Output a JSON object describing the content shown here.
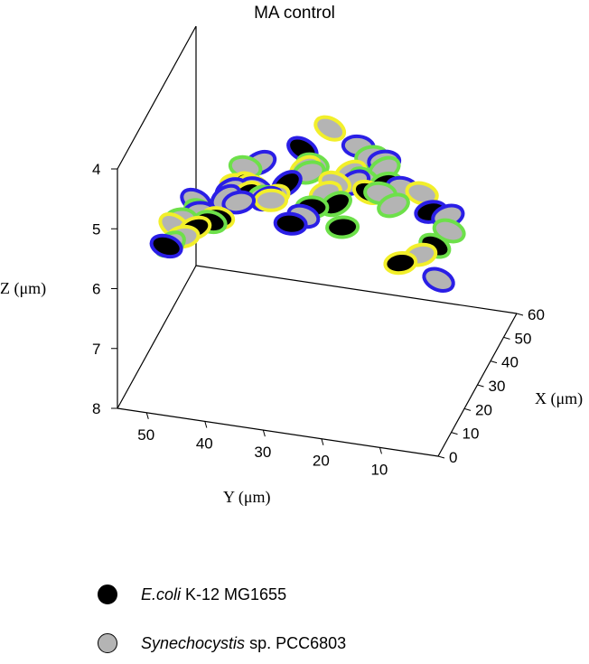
{
  "chart_data": {
    "type": "scatter",
    "title": "MA control",
    "xlabel": "X (μm)",
    "ylabel": "Y (μm)",
    "zlabel": "Z (μm)",
    "xlim": [
      0,
      60
    ],
    "ylim": [
      0,
      55
    ],
    "zlim": [
      4,
      8
    ],
    "x_ticks": [
      "0",
      "10",
      "20",
      "30",
      "40",
      "50",
      "60"
    ],
    "y_ticks": [
      "50",
      "40",
      "30",
      "20",
      "10"
    ],
    "z_ticks": [
      "4",
      "5",
      "6",
      "7",
      "8"
    ],
    "cell_fill_colors": {
      "E.coli": "#000000",
      "Synechocystis": "#b4b4b4"
    },
    "ring_colors": {
      "blue": "#2a1ee6",
      "green": "#6de04a",
      "yellow": "#f2ef2a"
    },
    "legend": [
      {
        "italic": "E.coli",
        "text": " K-12 MG1655",
        "color": "#000000"
      },
      {
        "italic": "Synechocystis",
        "text": " sp. PCC6803",
        "color": "#b4b4b4"
      }
    ],
    "series": [
      {
        "name": "E.coli K-12 MG1655",
        "points": [
          [
            18,
            30,
            4.6
          ],
          [
            15,
            25,
            4.8
          ],
          [
            14,
            36,
            4.7
          ],
          [
            12,
            28,
            5.0
          ],
          [
            20,
            22,
            4.9
          ],
          [
            10,
            40,
            5.0
          ],
          [
            25,
            35,
            5.2
          ],
          [
            22,
            44,
            5.6
          ],
          [
            28,
            48,
            6.0
          ],
          [
            24,
            52,
            6.2
          ],
          [
            40,
            18,
            5.3
          ],
          [
            45,
            22,
            5.7
          ],
          [
            48,
            12,
            6.0
          ],
          [
            42,
            10,
            6.3
          ],
          [
            38,
            15,
            6.5
          ],
          [
            30,
            30,
            4.5
          ],
          [
            16,
            20,
            5.1
          ],
          [
            34,
            40,
            5.4
          ]
        ]
      },
      {
        "name": "Synechocystis sp. PCC6803",
        "points": [
          [
            20,
            35,
            4.4
          ],
          [
            22,
            38,
            4.6
          ],
          [
            17,
            32,
            4.8
          ],
          [
            12,
            34,
            4.5
          ],
          [
            26,
            28,
            4.7
          ],
          [
            28,
            24,
            4.9
          ],
          [
            8,
            36,
            4.6
          ],
          [
            14,
            44,
            5.1
          ],
          [
            10,
            46,
            5.4
          ],
          [
            20,
            46,
            5.2
          ],
          [
            26,
            50,
            5.8
          ],
          [
            30,
            52,
            6.1
          ],
          [
            32,
            48,
            5.9
          ],
          [
            18,
            50,
            5.9
          ],
          [
            24,
            40,
            5.0
          ],
          [
            34,
            22,
            5.1
          ],
          [
            36,
            18,
            5.3
          ],
          [
            40,
            24,
            5.2
          ],
          [
            44,
            16,
            5.5
          ],
          [
            46,
            18,
            5.9
          ],
          [
            50,
            14,
            5.8
          ],
          [
            52,
            10,
            6.2
          ],
          [
            44,
            8,
            6.1
          ],
          [
            40,
            12,
            6.4
          ],
          [
            36,
            8,
            6.6
          ],
          [
            38,
            20,
            4.8
          ],
          [
            42,
            28,
            4.6
          ],
          [
            30,
            16,
            4.5
          ],
          [
            24,
            18,
            4.6
          ],
          [
            6,
            30,
            4.4
          ],
          [
            16,
            40,
            4.9
          ],
          [
            28,
            36,
            5.3
          ],
          [
            32,
            30,
            4.9
          ],
          [
            46,
            24,
            5.0
          ],
          [
            48,
            20,
            5.4
          ],
          [
            36,
            40,
            5.5
          ],
          [
            38,
            44,
            5.7
          ],
          [
            20,
            26,
            4.3
          ],
          [
            12,
            22,
            4.4
          ],
          [
            4,
            24,
            4.5
          ]
        ]
      }
    ]
  }
}
